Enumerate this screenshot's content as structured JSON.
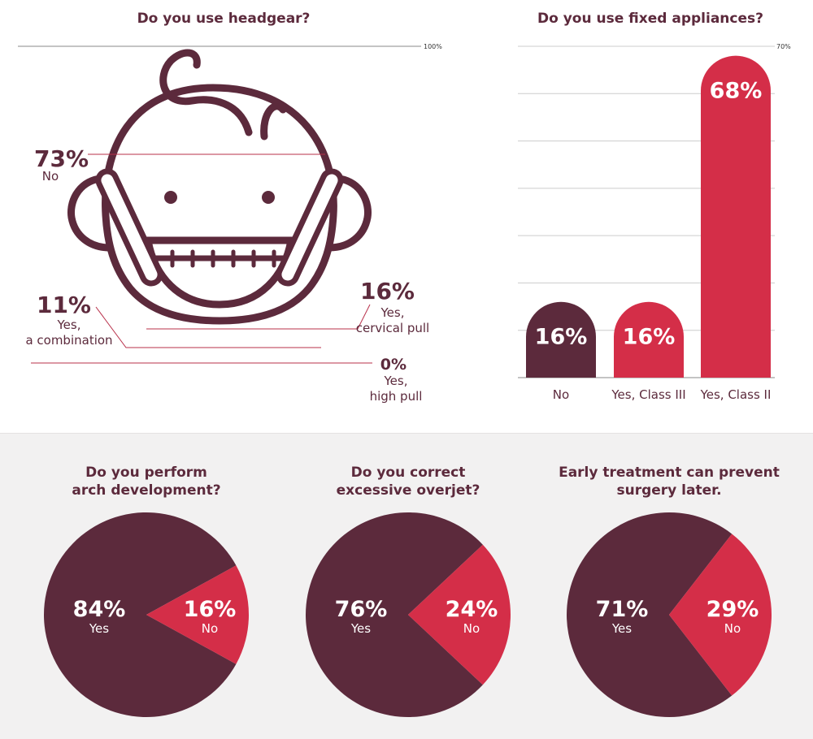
{
  "headgear": {
    "title": "Do you use headgear?",
    "axis_max_label": "100%",
    "items": [
      {
        "value": "73%",
        "label": [
          "No"
        ]
      },
      {
        "value": "16%",
        "label": [
          "Yes,",
          "cervical pull"
        ]
      },
      {
        "value": "11%",
        "label": [
          "Yes,",
          "a combination"
        ]
      },
      {
        "value": "0%",
        "label": [
          "Yes,",
          "high pull"
        ]
      }
    ]
  },
  "fixed": {
    "title": "Do you use fixed appliances?",
    "axis_max_label": "70%"
  },
  "pies": [
    {
      "title": [
        "Do you perform",
        "arch development?"
      ]
    },
    {
      "title": [
        "Do you correct",
        "excessive overjet?"
      ]
    },
    {
      "title": [
        "Early treatment can prevent",
        "surgery later."
      ]
    }
  ],
  "colors": {
    "dark": "#5c2a3c",
    "red": "#d42e48",
    "grid": "#cccccc",
    "panel": "#f2f1f1"
  },
  "chart_data": [
    {
      "type": "bar",
      "title": "Do you use headgear?",
      "categories": [
        "No",
        "Yes, cervical pull",
        "Yes, a combination",
        "Yes, high pull"
      ],
      "values": [
        73,
        16,
        11,
        0
      ],
      "ylim": [
        0,
        100
      ]
    },
    {
      "type": "bar",
      "title": "Do you use fixed appliances?",
      "categories": [
        "No",
        "Yes, Class III",
        "Yes, Class II"
      ],
      "values": [
        16,
        16,
        68
      ],
      "labels": [
        "16%",
        "16%",
        "68%"
      ],
      "ylim": [
        0,
        70
      ]
    },
    {
      "type": "pie",
      "title": "Do you perform arch development?",
      "categories": [
        "Yes",
        "No"
      ],
      "values": [
        84,
        16
      ],
      "labels": [
        "84%",
        "16%"
      ]
    },
    {
      "type": "pie",
      "title": "Do you correct excessive overjet?",
      "categories": [
        "Yes",
        "No"
      ],
      "values": [
        76,
        24
      ],
      "labels": [
        "76%",
        "24%"
      ]
    },
    {
      "type": "pie",
      "title": "Early treatment can prevent surgery later.",
      "categories": [
        "Yes",
        "No"
      ],
      "values": [
        71,
        29
      ],
      "labels": [
        "71%",
        "29%"
      ]
    }
  ]
}
